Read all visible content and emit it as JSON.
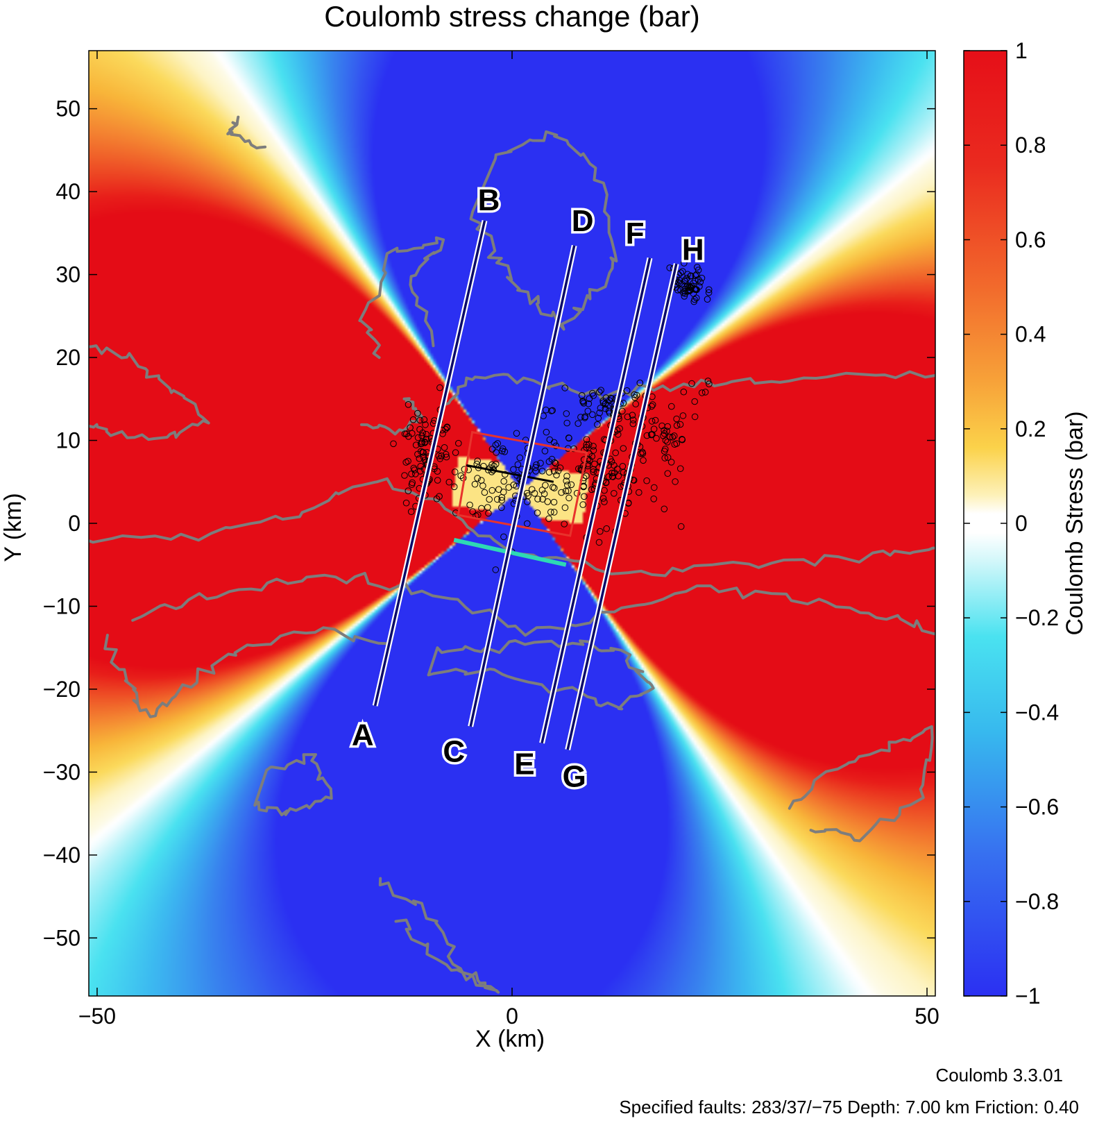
{
  "chart_data": {
    "type": "heatmap",
    "title": "Coulomb stress change (bar)",
    "xlabel": "X (km)",
    "ylabel": "Y (km)",
    "xlim": [
      -51,
      51
    ],
    "ylim": [
      -57,
      57
    ],
    "x_ticks": [
      -50,
      0,
      50
    ],
    "x_tick_labels": [
      "−50",
      "0",
      "50"
    ],
    "y_ticks": [
      50,
      40,
      30,
      20,
      10,
      0,
      -10,
      -20,
      -30,
      -40,
      -50
    ],
    "y_tick_labels": [
      "50",
      "40",
      "30",
      "20",
      "10",
      "0",
      "−10",
      "−20",
      "−30",
      "−40",
      "−50"
    ],
    "colorbar": {
      "label": "Coulomb Stress (bar)",
      "range": [
        -1,
        1
      ],
      "ticks": [
        1,
        0.8,
        0.6,
        0.4,
        0.2,
        0,
        -0.2,
        -0.4,
        -0.6,
        -0.8,
        -1
      ],
      "tick_labels": [
        "1",
        "0.8",
        "0.6",
        "0.4",
        "0.2",
        "0",
        "−0.2",
        "−0.4",
        "−0.6",
        "−0.8",
        "−1"
      ]
    },
    "stress_field": {
      "description": "four-lobed pattern, positive lobes west and east of fault, negative lobes north and south",
      "positive_color": "#e8121a",
      "negative_color": "#2a37ee"
    },
    "profiles": [
      {
        "start_label": "A",
        "end_label": "B",
        "start": [
          -16.5,
          -22
        ],
        "end": [
          -3.3,
          36.5
        ]
      },
      {
        "start_label": "C",
        "end_label": "D",
        "start": [
          -5,
          -24.5
        ],
        "end": [
          7.5,
          33.5
        ]
      },
      {
        "start_label": "E",
        "end_label": "F",
        "start": [
          3.6,
          -26.5
        ],
        "end": [
          16.6,
          32
        ]
      },
      {
        "start_label": "G",
        "end_label": "H",
        "start": [
          6.7,
          -27.3
        ],
        "end": [
          19.8,
          31.3
        ]
      }
    ],
    "profile_label_positions": {
      "A": [
        -18,
        -25.5
      ],
      "B": [
        -2.8,
        39
      ],
      "C": [
        -7,
        -27.5
      ],
      "D": [
        8.5,
        36.5
      ],
      "E": [
        1.5,
        -29
      ],
      "F": [
        14.8,
        35
      ],
      "G": [
        7.5,
        -30.5
      ],
      "H": [
        21.8,
        33
      ]
    },
    "fault_box": [
      [
        -4.8,
        11
      ],
      [
        9,
        8.5
      ],
      [
        7,
        -1.5
      ],
      [
        -6.5,
        1
      ]
    ],
    "fault_trace": [
      [
        -5.5,
        7
      ],
      [
        5,
        5
      ]
    ],
    "surface_fault": [
      [
        -7,
        -2
      ],
      [
        6.5,
        -5
      ]
    ],
    "fault_box_color": "#e8332c",
    "surface_fault_color": "#2ed9b4",
    "clusters": [
      {
        "x": -10.5,
        "y": 8,
        "sx": 1.4,
        "sy": 2.8,
        "n": 90
      },
      {
        "x": 2,
        "y": 6,
        "sx": 5,
        "sy": 2.5,
        "n": 130
      },
      {
        "x": 11.5,
        "y": 7,
        "sx": 3.5,
        "sy": 3.5,
        "n": 110
      },
      {
        "x": 11,
        "y": 14,
        "sx": 3,
        "sy": 1.2,
        "n": 60
      },
      {
        "x": 18,
        "y": 10.5,
        "sx": 1.2,
        "sy": 1.6,
        "n": 35
      },
      {
        "x": 21.5,
        "y": 28.5,
        "sx": 1.1,
        "sy": 1.2,
        "n": 60
      },
      {
        "x": 22.5,
        "y": 16.5,
        "sx": 1.5,
        "sy": 1.5,
        "n": 8
      },
      {
        "x": -3,
        "y": 3,
        "sx": 2,
        "sy": 3,
        "n": 15
      }
    ],
    "grid": false
  },
  "footer": {
    "program": "Coulomb 3.3.01",
    "parameters": "Specified faults: 283/37/−75  Depth: 7.00 km  Friction: 0.40"
  },
  "colors": {
    "coastline": "#7d7d7d",
    "profile_line": "#0a0a6a"
  }
}
